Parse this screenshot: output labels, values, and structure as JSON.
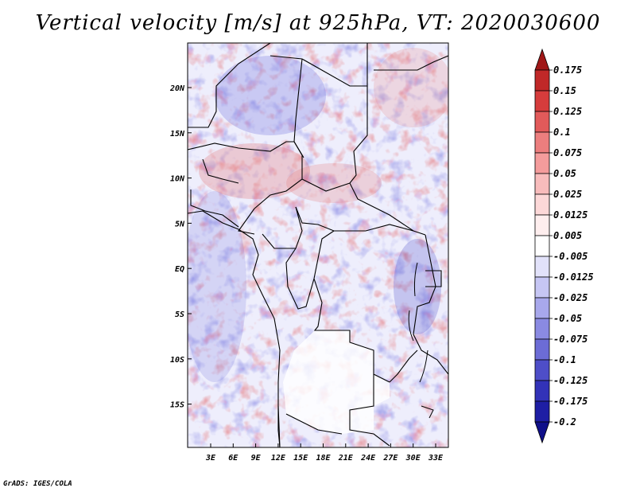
{
  "title": "Vertical velocity [m/s] at 925hPa, VT: 2020030600",
  "credit": "GrADS: IGES/COLA",
  "map": {
    "lat_ticks": [
      "20N",
      "15N",
      "10N",
      "5N",
      "EQ",
      "5S",
      "10S",
      "15S"
    ],
    "lon_ticks": [
      "3E",
      "6E",
      "9E",
      "12E",
      "15E",
      "18E",
      "21E",
      "24E",
      "27E",
      "30E",
      "33E"
    ]
  },
  "colorbar": {
    "levels": [
      "0.175",
      "0.15",
      "0.125",
      "0.1",
      "0.075",
      "0.05",
      "0.025",
      "0.0125",
      "0.005",
      "-0.005",
      "-0.0125",
      "-0.025",
      "-0.05",
      "-0.075",
      "-0.1",
      "-0.125",
      "-0.175",
      "-0.2"
    ],
    "colors": [
      "#a01818",
      "#c02828",
      "#d63c3c",
      "#e25a5a",
      "#ec7e7e",
      "#f49c9c",
      "#f8bcbc",
      "#fcd8d8",
      "#feeeee",
      "#ffffff",
      "#e2e2fa",
      "#c6c6f4",
      "#a8a8ec",
      "#8a8ae2",
      "#6c6cd6",
      "#4e4ec8",
      "#3232b8",
      "#1e1ea4",
      "#10108a"
    ]
  }
}
